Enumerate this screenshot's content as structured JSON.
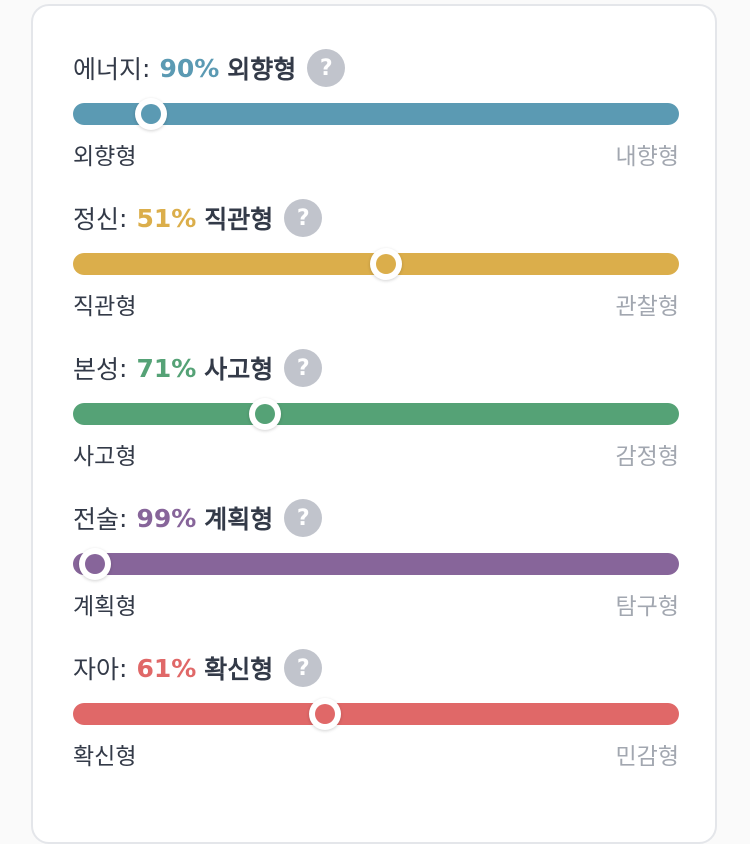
{
  "traits": [
    {
      "name": "에너지",
      "percent": "90%",
      "percent_value": 90,
      "dominant": "외향형",
      "left_label": "외향형",
      "right_label": "내향형",
      "color": "#5b9ab3",
      "knob_fraction": 0.128
    },
    {
      "name": "정신",
      "percent": "51%",
      "percent_value": 51,
      "dominant": "직관형",
      "left_label": "직관형",
      "right_label": "관찰형",
      "color": "#dbae4b",
      "knob_fraction": 0.516
    },
    {
      "name": "본성",
      "percent": "71%",
      "percent_value": 71,
      "dominant": "사고형",
      "left_label": "사고형",
      "right_label": "감정형",
      "color": "#55a276",
      "knob_fraction": 0.317
    },
    {
      "name": "전술",
      "percent": "99%",
      "percent_value": 99,
      "dominant": "계획형",
      "left_label": "계획형",
      "right_label": "탐구형",
      "color": "#87659a",
      "knob_fraction": 0.036
    },
    {
      "name": "자아",
      "percent": "61%",
      "percent_value": 61,
      "dominant": "확신형",
      "left_label": "확신형",
      "right_label": "민감형",
      "color": "#e06868",
      "knob_fraction": 0.416
    }
  ],
  "help_glyph": "?",
  "help_icon": "question-circle-icon",
  "colon": ":"
}
